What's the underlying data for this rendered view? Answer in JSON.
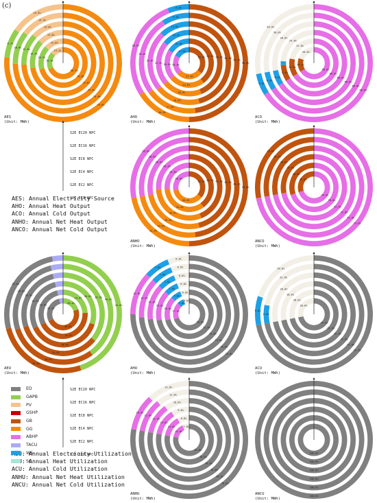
{
  "panel_label": "(c)",
  "colors": {
    "ED": "#808080",
    "GAPB": "#92cf4f",
    "PV": "#f5c38c",
    "GSHP": "#c00000",
    "GB": "#c0540f",
    "GG": "#f58a10",
    "ABHP": "#e66ee6",
    "TACU": "#ababf5",
    "WS": "#1ea0e6",
    "SC": "#a6e6d9",
    "gap": "#f2efe6"
  },
  "scenario_labels": [
    "S2E EC20 NPC",
    "S2E EC16 NPC",
    "S2E EC8 NPC",
    "S2E EC4 NPC",
    "S2E EC2 NPC",
    "S2E EC0 NPC"
  ],
  "abbreviations_top": [
    "AES: Annual Electricity Source",
    "AHO: Annual Heat Output",
    "ACO: Annual Cold Output",
    "ANHO: Annual Net Heat Output",
    "ANCO: Annual Net Cold Output"
  ],
  "abbreviations_bottom": [
    "AEU: Annual Electricity Utilization",
    "AHU: Annual Heat Utilization",
    "ACU: Annual Cold Utilization",
    "ANHU: Annual Net Heat Utilization",
    "ANCU: Annual Net Cold Utilization"
  ],
  "legend": [
    {
      "name": "ED",
      "color": "#808080"
    },
    {
      "name": "GAPB",
      "color": "#92cf4f"
    },
    {
      "name": "PV",
      "color": "#f5c38c"
    },
    {
      "name": "GSHP",
      "color": "#c00000"
    },
    {
      "name": "GB",
      "color": "#c0540f"
    },
    {
      "name": "GG",
      "color": "#f58a10"
    },
    {
      "name": "ABHP",
      "color": "#e66ee6"
    },
    {
      "name": "TACU",
      "color": "#ababf5"
    },
    {
      "name": "WS",
      "color": "#1ea0e6"
    },
    {
      "name": "SC",
      "color": "#a6e6d9"
    }
  ],
  "chart_data": [
    {
      "type": "radial-bar",
      "name": "AES",
      "unit": "(Unit: MWh)",
      "rings": 6,
      "series": [
        {
          "name": "GG",
          "values": [
            76.6,
            74.8,
            74.4,
            72.6,
            70.8,
            68.7
          ]
        },
        {
          "name": "GAPB",
          "values": [
            8.1,
            10.8,
            12.6,
            14.4,
            16.2,
            18.0
          ]
        },
        {
          "name": "PV",
          "values": [
            15.3,
            14.4,
            13.0,
            13.0,
            13.0,
            13.3
          ]
        }
      ]
    },
    {
      "type": "radial-bar",
      "name": "AHO",
      "unit": "(Unit: MWh)",
      "rings": 6,
      "series": [
        {
          "name": "GB",
          "values": [
            50.0,
            48.0,
            46.0,
            44.0,
            40.0,
            36.0
          ]
        },
        {
          "name": "GG",
          "values": [
            16.0,
            17.0,
            18.0,
            20.0,
            24.0,
            27.0
          ]
        },
        {
          "name": "ABHP",
          "values": [
            28.0,
            26.0,
            24.0,
            22.0,
            20.0,
            20.0
          ]
        },
        {
          "name": "WS",
          "values": [
            6.0,
            9.0,
            12.0,
            14.0,
            16.0,
            17.0
          ]
        }
      ]
    },
    {
      "type": "radial-bar",
      "name": "ACO",
      "unit": "(Unit: MWh)",
      "rings": 6,
      "series": [
        {
          "name": "ABHP",
          "values": [
            66.0,
            66.0,
            66.0,
            66.0,
            66.0,
            66.0
          ]
        },
        {
          "name": "GB",
          "values": [
            0,
            0,
            0,
            8.0,
            12.0,
            14.0
          ]
        },
        {
          "name": "WS",
          "values": [
            6.0,
            6.0,
            6.0,
            2.0,
            0,
            0
          ]
        },
        {
          "name": "gap",
          "values": [
            28.0,
            28.0,
            28.0,
            24.0,
            22.0,
            20.0
          ]
        }
      ]
    },
    {
      "type": "radial-bar",
      "name": "ANHO",
      "unit": "(Unit: MWh)",
      "rings": 6,
      "series": [
        {
          "name": "GB",
          "values": [
            50.0,
            48.0,
            46.0,
            44.0,
            40.0,
            36.0
          ]
        },
        {
          "name": "GG",
          "values": [
            22.0,
            24.0,
            26.0,
            30.0,
            34.0,
            36.0
          ]
        },
        {
          "name": "ABHP",
          "values": [
            28.0,
            28.0,
            28.0,
            26.0,
            26.0,
            28.0
          ]
        }
      ]
    },
    {
      "type": "radial-bar",
      "name": "ANCO",
      "unit": "(Unit: MWh)",
      "rings": 6,
      "series": [
        {
          "name": "ABHP",
          "values": [
            72.0,
            72.0,
            72.0,
            72.0,
            70.0,
            70.0
          ]
        },
        {
          "name": "GB",
          "values": [
            28.0,
            28.0,
            28.0,
            28.0,
            30.0,
            30.0
          ]
        }
      ]
    },
    {
      "type": "radial-bar",
      "name": "AEU",
      "unit": "(Unit: MWh)",
      "rings": 6,
      "series": [
        {
          "name": "GAPB",
          "values": [
            45.0,
            40.0,
            36.0,
            30.0,
            24.0,
            20.0
          ]
        },
        {
          "name": "GB",
          "values": [
            26.0,
            30.0,
            34.0,
            38.0,
            44.0,
            48.0
          ]
        },
        {
          "name": "ED",
          "values": [
            26.0,
            26.0,
            26.0,
            28.0,
            28.0,
            28.0
          ]
        },
        {
          "name": "TACU",
          "values": [
            3.0,
            4.0,
            4.0,
            4.0,
            4.0,
            4.0
          ]
        }
      ]
    },
    {
      "type": "radial-bar",
      "name": "AHU",
      "unit": "(Unit: MWh)",
      "rings": 6,
      "series": [
        {
          "name": "ED",
          "values": [
            75.0,
            74.0,
            73.0,
            72.0,
            71.0,
            70.0
          ]
        },
        {
          "name": "ABHP",
          "values": [
            12.0,
            13.0,
            14.0,
            15.0,
            16.0,
            17.0
          ]
        },
        {
          "name": "WS",
          "values": [
            7.0,
            7.0,
            7.0,
            7.0,
            7.0,
            7.0
          ]
        },
        {
          "name": "gap",
          "values": [
            6.0,
            6.0,
            6.0,
            6.0,
            6.0,
            6.0
          ]
        }
      ]
    },
    {
      "type": "radial-bar",
      "name": "ACU",
      "unit": "(Unit: MWh)",
      "rings": 6,
      "series": [
        {
          "name": "ED",
          "values": [
            72.0,
            72.0,
            72.0,
            72.0,
            72.0,
            72.0
          ]
        },
        {
          "name": "WS",
          "values": [
            8.0,
            6.0,
            0,
            0,
            0,
            0
          ]
        },
        {
          "name": "gap",
          "values": [
            20.0,
            22.0,
            28.0,
            28.0,
            28.0,
            28.0
          ]
        }
      ]
    },
    {
      "type": "radial-bar",
      "name": "ANHU",
      "unit": "(Unit: MWh)",
      "rings": 6,
      "series": [
        {
          "name": "ED",
          "values": [
            78.0,
            78.0,
            78.0,
            78.0,
            78.0,
            78.0
          ]
        },
        {
          "name": "ABHP",
          "values": [
            10.0,
            11.0,
            12.0,
            13.0,
            14.0,
            15.0
          ]
        },
        {
          "name": "gap",
          "values": [
            12.0,
            11.0,
            10.0,
            9.0,
            8.0,
            7.0
          ]
        }
      ]
    },
    {
      "type": "radial-bar",
      "name": "ANCU",
      "unit": "(Unit: MWh)",
      "rings": 6,
      "series": [
        {
          "name": "ED",
          "values": [
            100.0,
            100.0,
            100.0,
            100.0,
            100.0,
            100.0
          ]
        }
      ]
    }
  ]
}
